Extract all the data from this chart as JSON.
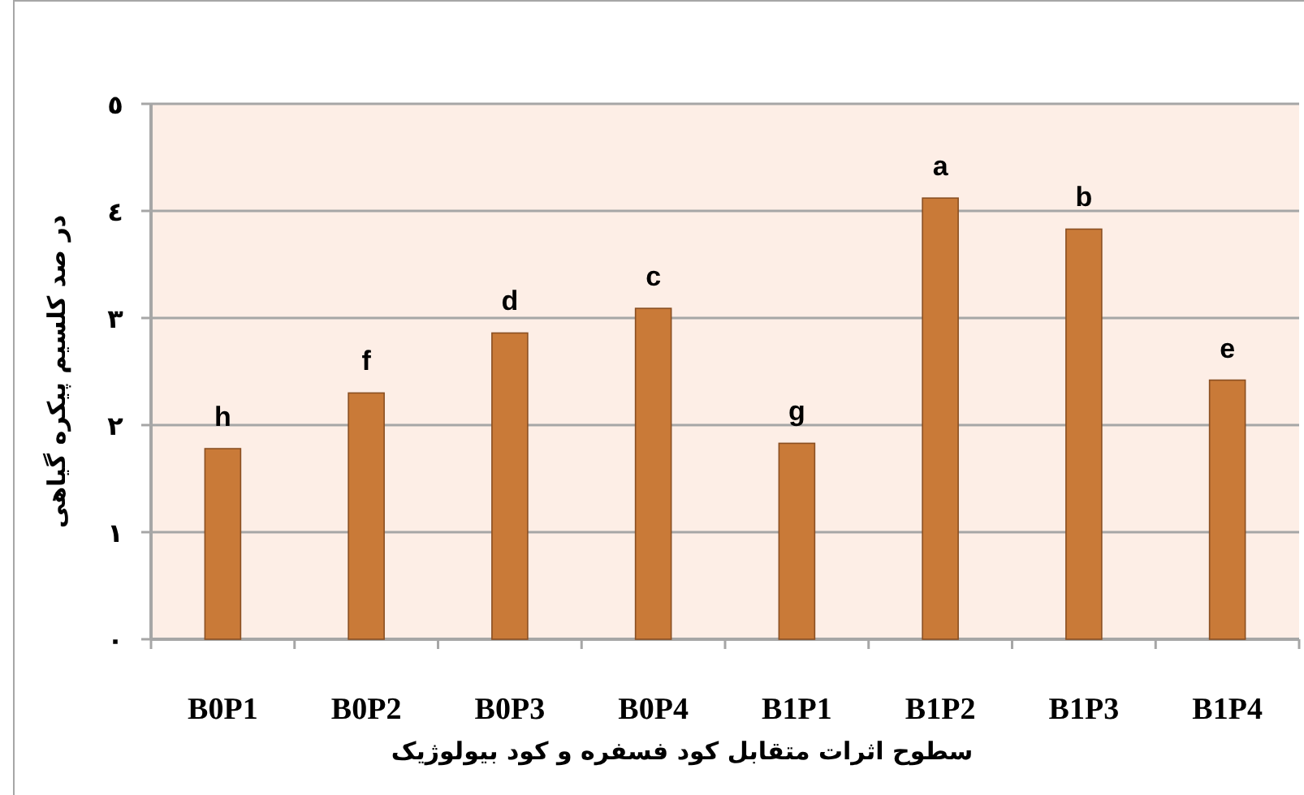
{
  "chart_data": {
    "type": "bar",
    "xlabel": "سطوح اثرات متقابل کود فسفره و کود بیولوژیک",
    "ylabel": "در صد کلسیم پیکره گیاهی",
    "categories": [
      "B0P1",
      "B0P2",
      "B0P3",
      "B0P4",
      "B1P1",
      "B1P2",
      "B1P3",
      "B1P4"
    ],
    "values": [
      1.78,
      2.3,
      2.86,
      3.09,
      1.83,
      4.12,
      3.83,
      2.42
    ],
    "color": "#c97a38",
    "ylim": [
      0,
      5
    ],
    "yticks": [
      {
        "value": 0,
        "label": "٠"
      },
      {
        "value": 1,
        "label": "١"
      },
      {
        "value": 2,
        "label": "٢"
      },
      {
        "value": 3,
        "label": "٣"
      },
      {
        "value": 4,
        "label": "٤"
      },
      {
        "value": 5,
        "label": "٥"
      }
    ],
    "grid": "y",
    "annotations": [
      {
        "text": "h",
        "x": "B0P1",
        "y": 1.78
      },
      {
        "text": "f",
        "x": "B0P2",
        "y": 2.3
      },
      {
        "text": "d",
        "x": "B0P3",
        "y": 2.86
      },
      {
        "text": "c",
        "x": "B0P4",
        "y": 3.09
      },
      {
        "text": "g",
        "x": "B1P1",
        "y": 1.83
      },
      {
        "text": "a",
        "x": "B1P2",
        "y": 4.12
      },
      {
        "text": "b",
        "x": "B1P3",
        "y": 3.83
      },
      {
        "text": "e",
        "x": "B1P4",
        "y": 2.42
      }
    ]
  }
}
